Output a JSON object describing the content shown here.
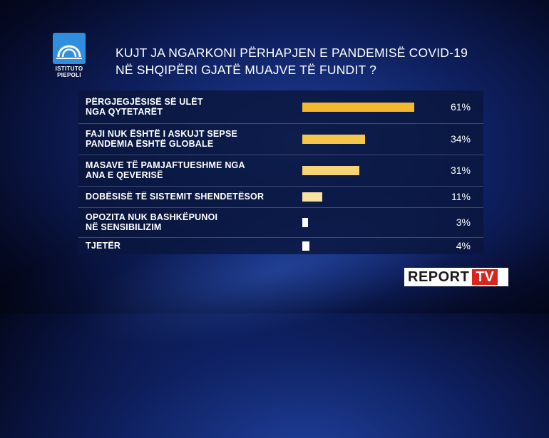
{
  "logo": {
    "line1": "ISTITUTO",
    "line2": "PIEPOLI"
  },
  "header": {
    "title_line1": "KUJT JA NGARKONI PËRHAPJEN E PANDEMISË COVID-19",
    "title_line2": "NË SHQIPËRI GJATË MUAJVE TË FUNDIT ?"
  },
  "chart_data": {
    "type": "bar",
    "orientation": "horizontal",
    "title": "KUJT JA NGARKONI PËRHAPJEN E PANDEMISË COVID-19 NË SHQIPËRI GJATË MUAJVE TË FUNDIT ?",
    "categories": [
      "PËRGJEGJËSISË SË ULËT\nNGA QYTETARËT",
      "FAJI NUK ËSHTË I ASKUJT  SEPSE\nPANDEMIA ËSHTË GLOBALE",
      "MASAVE TË PAMJAFTUESHME NGA\nANA E QEVERISË",
      "DOBËSISË TË SISTEMIT SHENDETËSOR",
      "OPOZITA NUK BASHKËPUNOI\nNË SENSIBILIZIM",
      "TJETËR"
    ],
    "values": [
      61,
      34,
      31,
      11,
      3,
      4
    ],
    "value_labels": [
      "61%",
      "34%",
      "31%",
      "11%",
      "3%",
      "4%"
    ],
    "bar_colors": [
      "#f2b82e",
      "#f5c64a",
      "#f7d474",
      "#f9e1a2",
      "#ffffff",
      "#ffffff"
    ],
    "xlim": [
      0,
      100
    ],
    "grid": false
  },
  "brand": {
    "report": "REPORT",
    "tv": "TV"
  }
}
